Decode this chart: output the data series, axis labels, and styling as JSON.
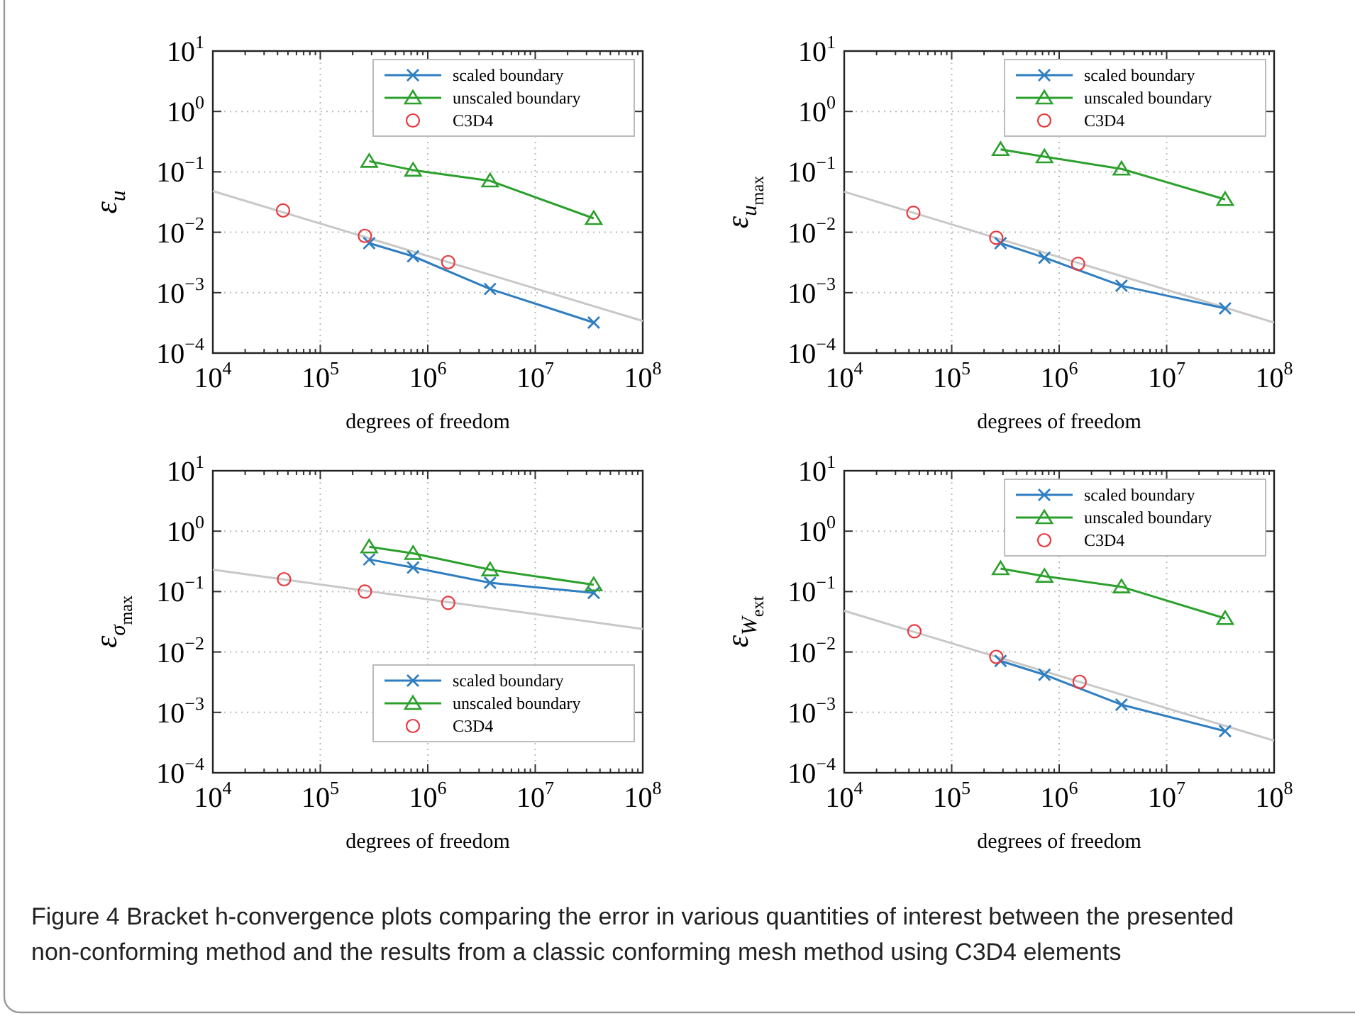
{
  "chart_data": [
    {
      "type": "line",
      "ylabel": "ε$_{u}$",
      "xlabel": "degrees of freedom",
      "log": "xy",
      "grid": true,
      "legend": "top right",
      "xlim": [
        10000,
        100000000
      ],
      "ylim": [
        0.0001,
        10
      ],
      "xticks": [
        {
          "value": 10000,
          "label": "10$^{4}$"
        },
        {
          "value": 100000,
          "label": "10$^{5}$"
        },
        {
          "value": 1000000,
          "label": "10$^{6}$"
        },
        {
          "value": 10000000,
          "label": "10$^{7}$"
        },
        {
          "value": 100000000,
          "label": "10$^{8}$"
        },
        {
          "value": 20000,
          "label": null
        },
        {
          "value": 30000,
          "label": null
        },
        {
          "value": 40000,
          "label": null
        },
        {
          "value": 50000,
          "label": null
        },
        {
          "value": 60000,
          "label": null
        },
        {
          "value": 70000,
          "label": null
        },
        {
          "value": 80000,
          "label": null
        },
        {
          "value": 90000,
          "label": null
        },
        {
          "value": 200000,
          "label": null
        },
        {
          "value": 300000,
          "label": null
        },
        {
          "value": 400000,
          "label": null
        },
        {
          "value": 500000,
          "label": null
        },
        {
          "value": 600000,
          "label": null
        },
        {
          "value": 700000,
          "label": null
        },
        {
          "value": 800000,
          "label": null
        },
        {
          "value": 900000,
          "label": null
        },
        {
          "value": 2000000,
          "label": null
        },
        {
          "value": 3000000,
          "label": null
        },
        {
          "value": 4000000,
          "label": null
        },
        {
          "value": 5000000,
          "label": null
        },
        {
          "value": 6000000,
          "label": null
        },
        {
          "value": 7000000,
          "label": null
        },
        {
          "value": 8000000,
          "label": null
        },
        {
          "value": 9000000,
          "label": null
        },
        {
          "value": 20000000,
          "label": null
        },
        {
          "value": 30000000,
          "label": null
        },
        {
          "value": 40000000,
          "label": null
        },
        {
          "value": 50000000,
          "label": null
        },
        {
          "value": 60000000,
          "label": null
        },
        {
          "value": 70000000,
          "label": null
        },
        {
          "value": 80000000,
          "label": null
        },
        {
          "value": 90000000,
          "label": null
        }
      ],
      "yticks": [
        {
          "value": 0.0001,
          "label": "10$^{−4}$"
        },
        {
          "value": 0.001,
          "label": "10$^{−3}$"
        },
        {
          "value": 0.01,
          "label": "10$^{−2}$"
        },
        {
          "value": 0.1,
          "label": "10$^{−1}$"
        },
        {
          "value": 1,
          "label": "10$^{0}$"
        },
        {
          "value": 10,
          "label": "10$^{1}$"
        }
      ],
      "series": [
        {
          "type": "line",
          "color": "#c8c8c8",
          "marker": "none",
          "x": [
            10000,
            100000000
          ],
          "values": [
            0.048,
            0.00034
          ]
        },
        {
          "name": "scaled boundary",
          "type": "line",
          "color": "#2f7ec1",
          "marker": "cross",
          "x": [
            285000,
            730000,
            3800000,
            35000000
          ],
          "values": [
            0.0066,
            0.004,
            0.00115,
            0.00032
          ]
        },
        {
          "name": "unscaled boundary",
          "type": "line",
          "color": "#2ca02c",
          "marker": "triangle",
          "x": [
            285000,
            730000,
            3800000,
            35000000
          ],
          "values": [
            0.15,
            0.107,
            0.071,
            0.017
          ]
        },
        {
          "name": "C3D4",
          "type": "scatter",
          "color": "#e8383d",
          "marker": "circle",
          "x": [
            45000,
            260000,
            1550000
          ],
          "values": [
            0.023,
            0.0087,
            0.0032
          ]
        }
      ]
    },
    {
      "type": "line",
      "ylabel": "ε$_{u}$$_{max}$",
      "xlabel": "degrees of freedom",
      "log": "xy",
      "grid": true,
      "legend": "top right",
      "xlim": [
        10000,
        100000000
      ],
      "ylim": [
        0.0001,
        10
      ],
      "xticks": [
        {
          "value": 10000,
          "label": "10$^{4}$"
        },
        {
          "value": 100000,
          "label": "10$^{5}$"
        },
        {
          "value": 1000000,
          "label": "10$^{6}$"
        },
        {
          "value": 10000000,
          "label": "10$^{7}$"
        },
        {
          "value": 100000000,
          "label": "10$^{8}$"
        },
        {
          "value": 20000,
          "label": null
        },
        {
          "value": 30000,
          "label": null
        },
        {
          "value": 40000,
          "label": null
        },
        {
          "value": 50000,
          "label": null
        },
        {
          "value": 60000,
          "label": null
        },
        {
          "value": 70000,
          "label": null
        },
        {
          "value": 80000,
          "label": null
        },
        {
          "value": 90000,
          "label": null
        },
        {
          "value": 200000,
          "label": null
        },
        {
          "value": 300000,
          "label": null
        },
        {
          "value": 400000,
          "label": null
        },
        {
          "value": 500000,
          "label": null
        },
        {
          "value": 600000,
          "label": null
        },
        {
          "value": 700000,
          "label": null
        },
        {
          "value": 800000,
          "label": null
        },
        {
          "value": 900000,
          "label": null
        },
        {
          "value": 2000000,
          "label": null
        },
        {
          "value": 3000000,
          "label": null
        },
        {
          "value": 4000000,
          "label": null
        },
        {
          "value": 5000000,
          "label": null
        },
        {
          "value": 6000000,
          "label": null
        },
        {
          "value": 7000000,
          "label": null
        },
        {
          "value": 8000000,
          "label": null
        },
        {
          "value": 9000000,
          "label": null
        },
        {
          "value": 20000000,
          "label": null
        },
        {
          "value": 30000000,
          "label": null
        },
        {
          "value": 40000000,
          "label": null
        },
        {
          "value": 50000000,
          "label": null
        },
        {
          "value": 60000000,
          "label": null
        },
        {
          "value": 70000000,
          "label": null
        },
        {
          "value": 80000000,
          "label": null
        },
        {
          "value": 90000000,
          "label": null
        }
      ],
      "yticks": [
        {
          "value": 0.0001,
          "label": "10$^{−4}$"
        },
        {
          "value": 0.001,
          "label": "10$^{−3}$"
        },
        {
          "value": 0.01,
          "label": "10$^{−2}$"
        },
        {
          "value": 0.1,
          "label": "10$^{−1}$"
        },
        {
          "value": 1,
          "label": "10$^{0}$"
        },
        {
          "value": 10,
          "label": "10$^{1}$"
        }
      ],
      "series": [
        {
          "type": "line",
          "color": "#c8c8c8",
          "marker": "none",
          "x": [
            10000,
            100000000
          ],
          "values": [
            0.047,
            0.00032
          ]
        },
        {
          "name": "scaled boundary",
          "type": "line",
          "color": "#2f7ec1",
          "marker": "cross",
          "x": [
            285000,
            730000,
            3800000,
            35000000
          ],
          "values": [
            0.0066,
            0.0038,
            0.0013,
            0.00055
          ]
        },
        {
          "name": "unscaled boundary",
          "type": "line",
          "color": "#2ca02c",
          "marker": "triangle",
          "x": [
            285000,
            730000,
            3800000,
            35000000
          ],
          "values": [
            0.235,
            0.178,
            0.112,
            0.035
          ]
        },
        {
          "name": "C3D4",
          "type": "scatter",
          "color": "#e8383d",
          "marker": "circle",
          "x": [
            44000,
            260000,
            1500000
          ],
          "values": [
            0.021,
            0.0081,
            0.003
          ]
        }
      ]
    },
    {
      "type": "line",
      "ylabel": "ε$_{σ}$$_{max}$",
      "xlabel": "degrees of freedom",
      "log": "xy",
      "grid": true,
      "legend": "bottom right",
      "xlim": [
        10000,
        100000000
      ],
      "ylim": [
        0.0001,
        10
      ],
      "xticks": [
        {
          "value": 10000,
          "label": "10$^{4}$"
        },
        {
          "value": 100000,
          "label": "10$^{5}$"
        },
        {
          "value": 1000000,
          "label": "10$^{6}$"
        },
        {
          "value": 10000000,
          "label": "10$^{7}$"
        },
        {
          "value": 100000000,
          "label": "10$^{8}$"
        },
        {
          "value": 20000,
          "label": null
        },
        {
          "value": 30000,
          "label": null
        },
        {
          "value": 40000,
          "label": null
        },
        {
          "value": 50000,
          "label": null
        },
        {
          "value": 60000,
          "label": null
        },
        {
          "value": 70000,
          "label": null
        },
        {
          "value": 80000,
          "label": null
        },
        {
          "value": 90000,
          "label": null
        },
        {
          "value": 200000,
          "label": null
        },
        {
          "value": 300000,
          "label": null
        },
        {
          "value": 400000,
          "label": null
        },
        {
          "value": 500000,
          "label": null
        },
        {
          "value": 600000,
          "label": null
        },
        {
          "value": 700000,
          "label": null
        },
        {
          "value": 800000,
          "label": null
        },
        {
          "value": 900000,
          "label": null
        },
        {
          "value": 2000000,
          "label": null
        },
        {
          "value": 3000000,
          "label": null
        },
        {
          "value": 4000000,
          "label": null
        },
        {
          "value": 5000000,
          "label": null
        },
        {
          "value": 6000000,
          "label": null
        },
        {
          "value": 7000000,
          "label": null
        },
        {
          "value": 8000000,
          "label": null
        },
        {
          "value": 9000000,
          "label": null
        },
        {
          "value": 20000000,
          "label": null
        },
        {
          "value": 30000000,
          "label": null
        },
        {
          "value": 40000000,
          "label": null
        },
        {
          "value": 50000000,
          "label": null
        },
        {
          "value": 60000000,
          "label": null
        },
        {
          "value": 70000000,
          "label": null
        },
        {
          "value": 80000000,
          "label": null
        },
        {
          "value": 90000000,
          "label": null
        }
      ],
      "yticks": [
        {
          "value": 0.0001,
          "label": "10$^{−4}$"
        },
        {
          "value": 0.001,
          "label": "10$^{−3}$"
        },
        {
          "value": 0.01,
          "label": "10$^{−2}$"
        },
        {
          "value": 0.1,
          "label": "10$^{−1}$"
        },
        {
          "value": 1,
          "label": "10$^{0}$"
        },
        {
          "value": 10,
          "label": "10$^{1}$"
        }
      ],
      "series": [
        {
          "type": "line",
          "color": "#c8c8c8",
          "marker": "none",
          "x": [
            10000,
            100000000
          ],
          "values": [
            0.23,
            0.024
          ]
        },
        {
          "name": "scaled boundary",
          "type": "line",
          "color": "#2f7ec1",
          "marker": "cross",
          "x": [
            285000,
            730000,
            3800000,
            35000000
          ],
          "values": [
            0.34,
            0.25,
            0.14,
            0.095
          ]
        },
        {
          "name": "unscaled boundary",
          "type": "line",
          "color": "#2ca02c",
          "marker": "triangle",
          "x": [
            285000,
            730000,
            3800000,
            35000000
          ],
          "values": [
            0.55,
            0.43,
            0.23,
            0.13
          ]
        },
        {
          "name": "C3D4",
          "type": "scatter",
          "color": "#e8383d",
          "marker": "circle",
          "x": [
            46000,
            260000,
            1550000
          ],
          "values": [
            0.16,
            0.1,
            0.065
          ]
        }
      ]
    },
    {
      "type": "line",
      "ylabel": "ε$_{W}$$_{ext}$",
      "xlabel": "degrees of freedom",
      "log": "xy",
      "grid": true,
      "legend": "top right",
      "xlim": [
        10000,
        100000000
      ],
      "ylim": [
        0.0001,
        10
      ],
      "xticks": [
        {
          "value": 10000,
          "label": "10$^{4}$"
        },
        {
          "value": 100000,
          "label": "10$^{5}$"
        },
        {
          "value": 1000000,
          "label": "10$^{6}$"
        },
        {
          "value": 10000000,
          "label": "10$^{7}$"
        },
        {
          "value": 100000000,
          "label": "10$^{8}$"
        },
        {
          "value": 20000,
          "label": null
        },
        {
          "value": 30000,
          "label": null
        },
        {
          "value": 40000,
          "label": null
        },
        {
          "value": 50000,
          "label": null
        },
        {
          "value": 60000,
          "label": null
        },
        {
          "value": 70000,
          "label": null
        },
        {
          "value": 80000,
          "label": null
        },
        {
          "value": 90000,
          "label": null
        },
        {
          "value": 200000,
          "label": null
        },
        {
          "value": 300000,
          "label": null
        },
        {
          "value": 400000,
          "label": null
        },
        {
          "value": 500000,
          "label": null
        },
        {
          "value": 600000,
          "label": null
        },
        {
          "value": 700000,
          "label": null
        },
        {
          "value": 800000,
          "label": null
        },
        {
          "value": 900000,
          "label": null
        },
        {
          "value": 2000000,
          "label": null
        },
        {
          "value": 3000000,
          "label": null
        },
        {
          "value": 4000000,
          "label": null
        },
        {
          "value": 5000000,
          "label": null
        },
        {
          "value": 6000000,
          "label": null
        },
        {
          "value": 7000000,
          "label": null
        },
        {
          "value": 8000000,
          "label": null
        },
        {
          "value": 9000000,
          "label": null
        },
        {
          "value": 20000000,
          "label": null
        },
        {
          "value": 30000000,
          "label": null
        },
        {
          "value": 40000000,
          "label": null
        },
        {
          "value": 50000000,
          "label": null
        },
        {
          "value": 60000000,
          "label": null
        },
        {
          "value": 70000000,
          "label": null
        },
        {
          "value": 80000000,
          "label": null
        },
        {
          "value": 90000000,
          "label": null
        }
      ],
      "yticks": [
        {
          "value": 0.0001,
          "label": "10$^{−4}$"
        },
        {
          "value": 0.001,
          "label": "10$^{−3}$"
        },
        {
          "value": 0.01,
          "label": "10$^{−2}$"
        },
        {
          "value": 0.1,
          "label": "10$^{−1}$"
        },
        {
          "value": 1,
          "label": "10$^{0}$"
        },
        {
          "value": 10,
          "label": "10$^{1}$"
        }
      ],
      "series": [
        {
          "type": "line",
          "color": "#c8c8c8",
          "marker": "none",
          "x": [
            10000,
            100000000
          ],
          "values": [
            0.048,
            0.00034
          ]
        },
        {
          "name": "scaled boundary",
          "type": "line",
          "color": "#2f7ec1",
          "marker": "cross",
          "x": [
            285000,
            730000,
            3800000,
            35000000
          ],
          "values": [
            0.0071,
            0.0042,
            0.00134,
            0.00049
          ]
        },
        {
          "name": "unscaled boundary",
          "type": "line",
          "color": "#2ca02c",
          "marker": "triangle",
          "x": [
            285000,
            730000,
            3800000,
            35000000
          ],
          "values": [
            0.24,
            0.18,
            0.12,
            0.036
          ]
        },
        {
          "name": "C3D4",
          "type": "scatter",
          "color": "#e8383d",
          "marker": "circle",
          "x": [
            45000,
            260000,
            1550000
          ],
          "values": [
            0.022,
            0.0083,
            0.0032
          ]
        }
      ],
      "annotations": [
        "Figure 4  Bracket h-convergence plots comparing the error in various quantities of interest between the presented non-conforming method and the results from a classic conforming mesh method using C3D4 elements"
      ]
    }
  ]
}
